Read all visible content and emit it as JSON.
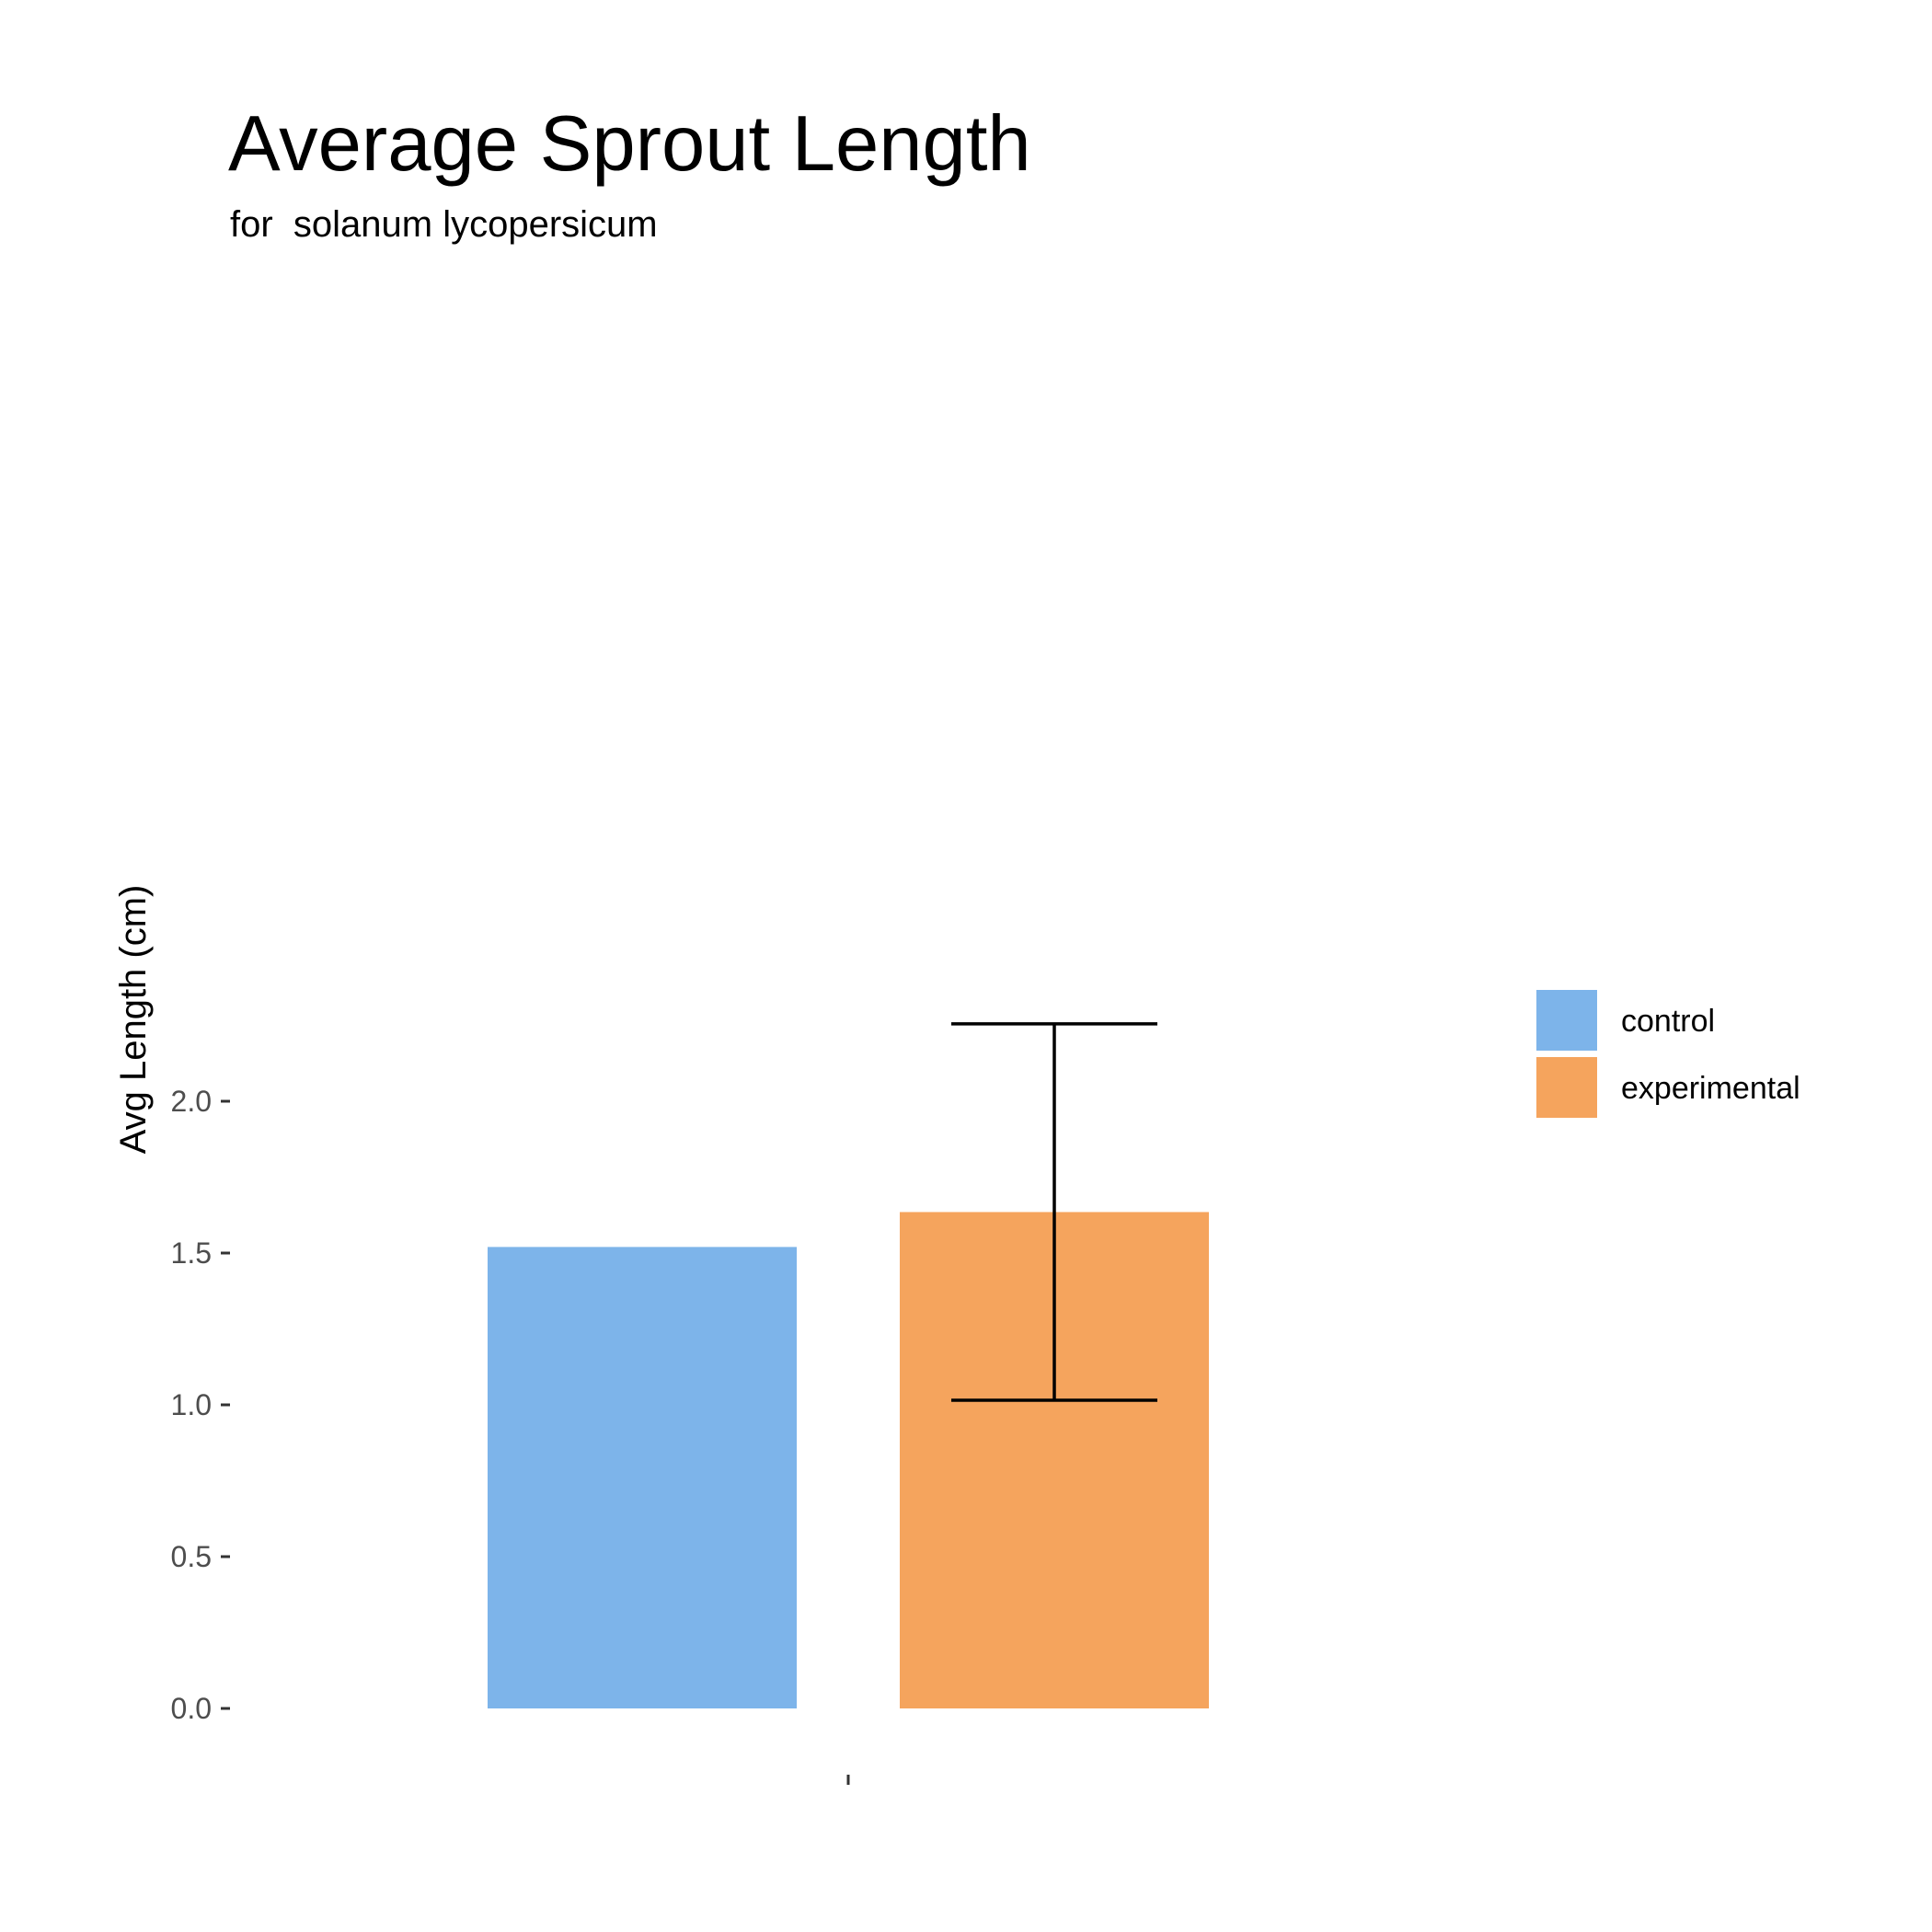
{
  "chart_data": {
    "type": "bar",
    "title": "Average Sprout Length",
    "subtitle": "for  solanum lycopersicum",
    "xlabel": "",
    "ylabel": "Avg Length (cm)",
    "categories": [
      ""
    ],
    "series": [
      {
        "name": "control",
        "values": [
          1.52
        ],
        "color": "#7db4ea",
        "error": null
      },
      {
        "name": "experimental",
        "values": [
          1.635
        ],
        "color": "#f5a45d",
        "error": [
          1.015,
          2.255
        ]
      }
    ],
    "ylim": [
      0.0,
      2.28
    ],
    "yticks": [
      0.0,
      0.5,
      1.0,
      1.5,
      2.0
    ],
    "ytick_labels": [
      "0.0",
      "0.5",
      "1.0",
      "1.5",
      "2.0"
    ],
    "grid": false,
    "legend_position": "right"
  }
}
